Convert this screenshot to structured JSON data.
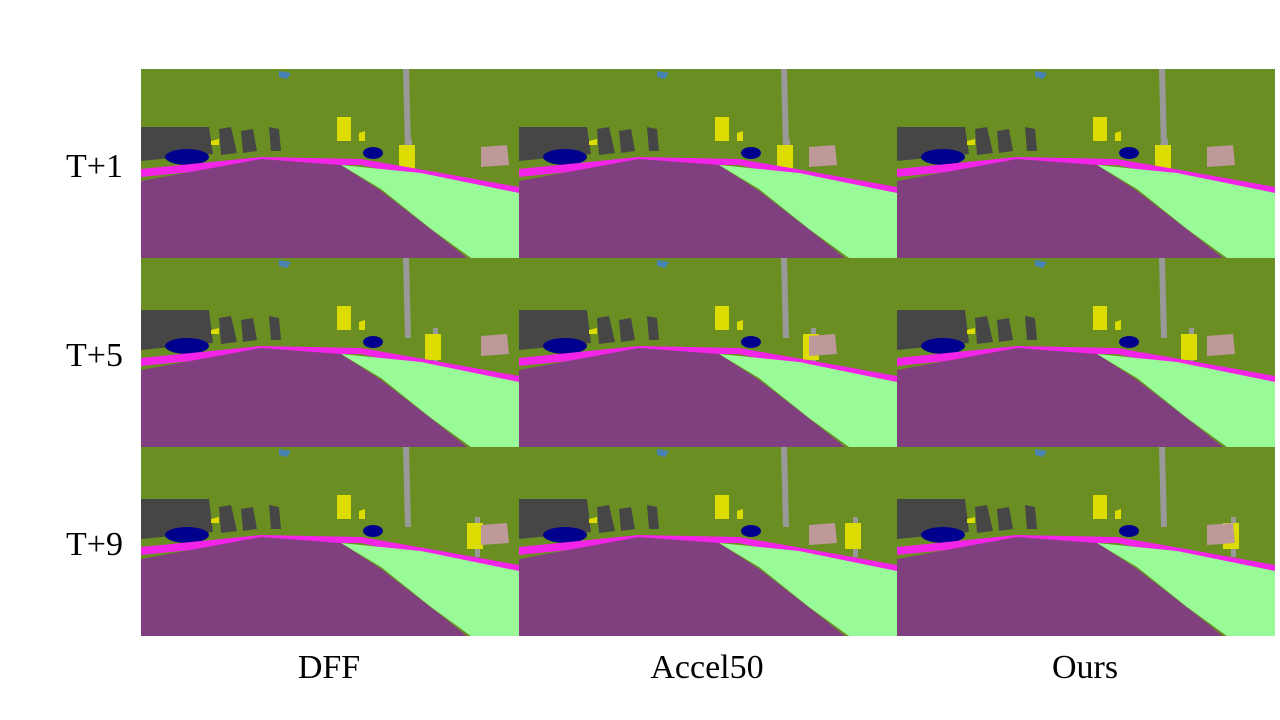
{
  "rows": [
    "T+1",
    "T+5",
    "T+9"
  ],
  "columns": [
    "DFF",
    "Accel50",
    "Ours"
  ],
  "colors": {
    "vegetation": "#6b8e23",
    "road": "#804080",
    "terrain": "#98fb98",
    "sidewalk": "#f423e8",
    "building": "#464646",
    "car": "#00008e",
    "traffic_sign": "#dcdc00",
    "pole": "#999999",
    "wall": "#be9999",
    "sky": "#4682b4"
  }
}
